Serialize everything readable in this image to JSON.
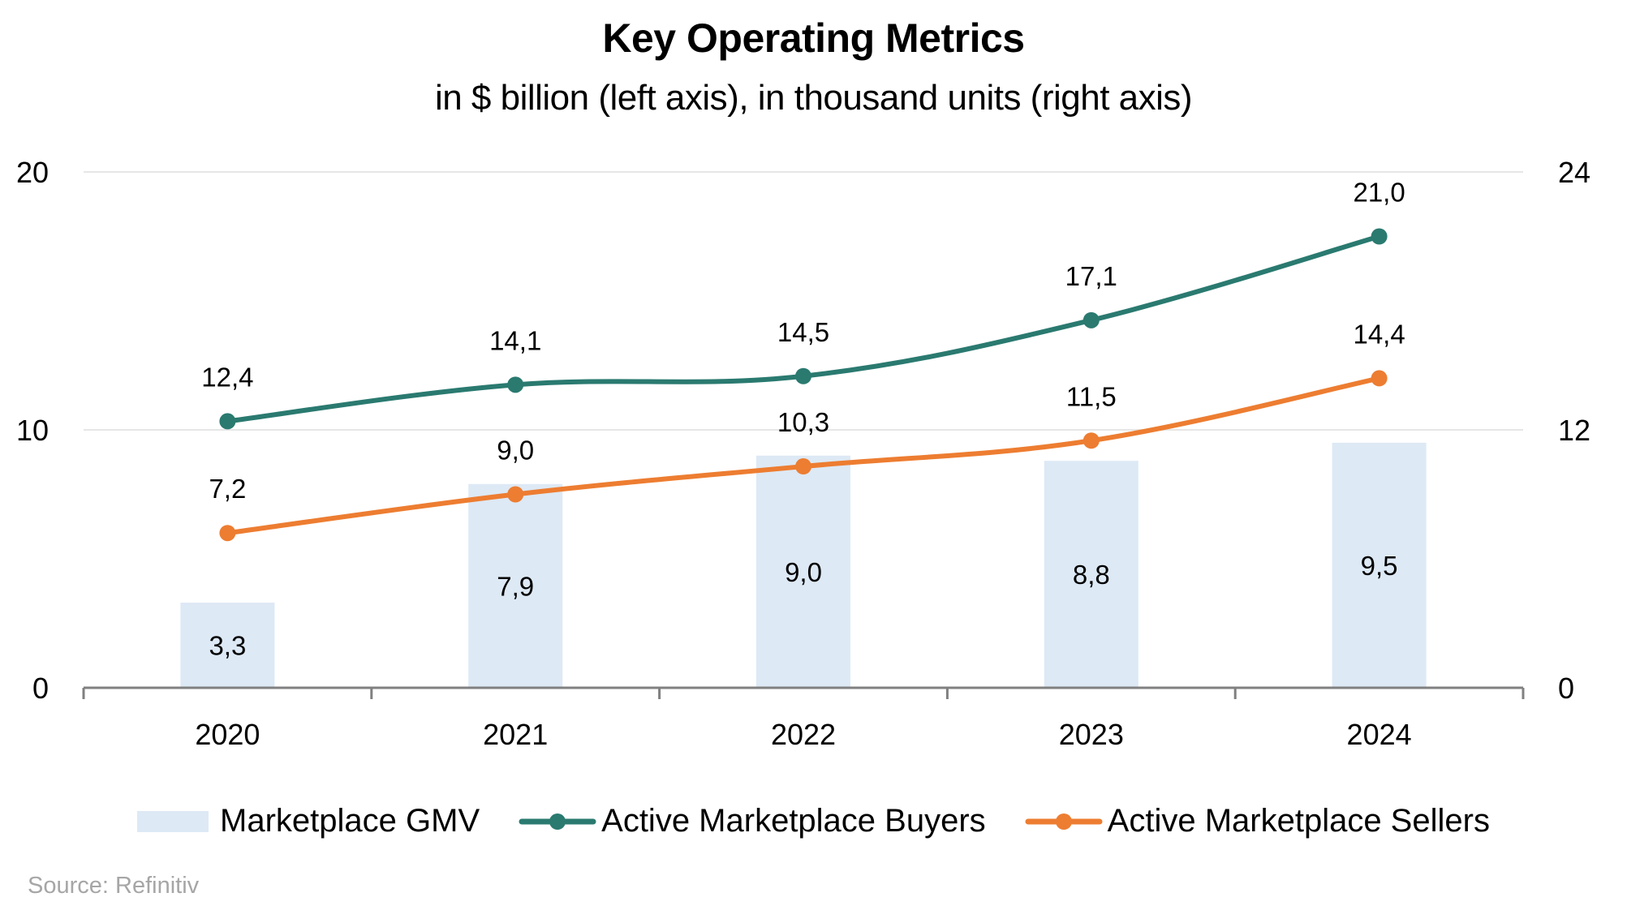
{
  "chart_data": {
    "type": "bar+line",
    "title": "Key Operating Metrics",
    "subtitle": "in $ billion (left axis), in thousand units (right axis)",
    "categories": [
      "2020",
      "2021",
      "2022",
      "2023",
      "2024"
    ],
    "left_axis": {
      "ylim": [
        0,
        20
      ],
      "ticks": [
        "0",
        "10",
        "20"
      ]
    },
    "right_axis": {
      "ylim": [
        0,
        24
      ],
      "ticks": [
        "0",
        "12",
        "24"
      ]
    },
    "grid": true,
    "series": [
      {
        "name": "Marketplace GMV",
        "type": "bar",
        "axis": "left",
        "color": "#DDE9F5",
        "values": [
          3.3,
          7.9,
          9.0,
          8.8,
          9.5
        ],
        "labels": [
          "3,3",
          "7,9",
          "9,0",
          "8,8",
          "9,5"
        ]
      },
      {
        "name": "Active Marketplace Buyers",
        "type": "line",
        "axis": "right",
        "color": "#2A7A70",
        "values": [
          12.4,
          14.1,
          14.5,
          17.1,
          21.0
        ],
        "labels": [
          "12,4",
          "14,1",
          "14,5",
          "17,1",
          "21,0"
        ]
      },
      {
        "name": "Active Marketplace Sellers",
        "type": "line",
        "axis": "right",
        "color": "#ED7D31",
        "values": [
          7.2,
          9.0,
          10.3,
          11.5,
          14.4
        ],
        "labels": [
          "7,2",
          "9,0",
          "10,3",
          "11,5",
          "14,4"
        ]
      }
    ],
    "legend": "bottom-center",
    "source": "Source: Refinitiv"
  }
}
